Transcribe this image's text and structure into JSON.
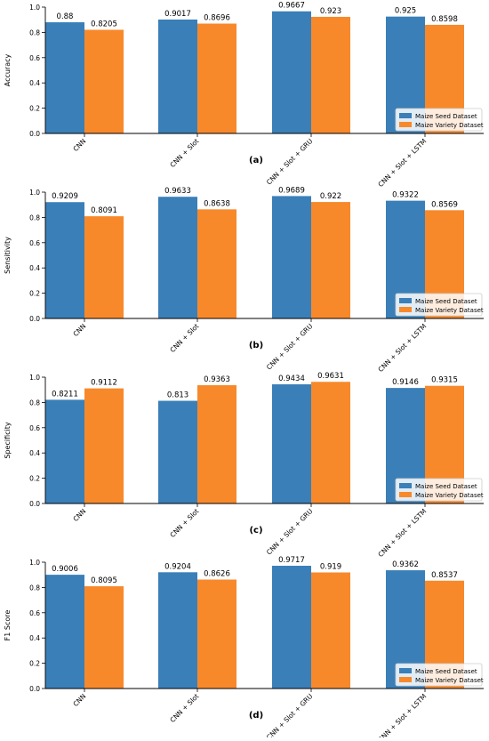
{
  "chart_data": [
    {
      "type": "bar",
      "panel_label": "(a)",
      "ylabel": "Accuracy",
      "ylim": [
        0,
        1.0
      ],
      "yticks": [
        "0.0",
        "0.2",
        "0.4",
        "0.6",
        "0.8",
        "1.0"
      ],
      "categories": [
        "CNN",
        "CNN + Slot",
        "CNN + Slot + GRU",
        "CNN + Slot + LSTM"
      ],
      "series": [
        {
          "name": "Maize Seed Dataset",
          "values": [
            0.88,
            0.9017,
            0.9667,
            0.925
          ],
          "labels": [
            "0.88",
            "0.9017",
            "0.9667",
            "0.925"
          ]
        },
        {
          "name": "Maize Variety Dataset",
          "values": [
            0.8205,
            0.8696,
            0.923,
            0.8598
          ],
          "labels": [
            "0.8205",
            "0.8696",
            "0.923",
            "0.8598"
          ]
        }
      ],
      "legend": "bottom-right",
      "grid": false
    },
    {
      "type": "bar",
      "panel_label": "(b)",
      "ylabel": "Sensitivity",
      "ylim": [
        0,
        1.0
      ],
      "yticks": [
        "0.0",
        "0.2",
        "0.4",
        "0.6",
        "0.8",
        "1.0"
      ],
      "categories": [
        "CNN",
        "CNN + Slot",
        "CNN + Slot + GRU",
        "CNN + Slot + LSTM"
      ],
      "series": [
        {
          "name": "Maize Seed Dataset",
          "values": [
            0.9209,
            0.9633,
            0.9689,
            0.9322
          ],
          "labels": [
            "0.9209",
            "0.9633",
            "0.9689",
            "0.9322"
          ]
        },
        {
          "name": "Maize Variety Dataset",
          "values": [
            0.8091,
            0.8638,
            0.922,
            0.8569
          ],
          "labels": [
            "0.8091",
            "0.8638",
            "0.922",
            "0.8569"
          ]
        }
      ],
      "legend": "bottom-right",
      "grid": false
    },
    {
      "type": "bar",
      "panel_label": "(c)",
      "ylabel": "Specificity",
      "ylim": [
        0,
        1.0
      ],
      "yticks": [
        "0.0",
        "0.2",
        "0.4",
        "0.6",
        "0.8",
        "1.0"
      ],
      "categories": [
        "CNN",
        "CNN + Slot",
        "CNN + Slot + GRU",
        "CNN + Slot + LSTM"
      ],
      "series": [
        {
          "name": "Maize Seed Dataset",
          "values": [
            0.8211,
            0.813,
            0.9434,
            0.9146
          ],
          "labels": [
            "0.8211",
            "0.813",
            "0.9434",
            "0.9146"
          ]
        },
        {
          "name": "Maize Variety Dataset",
          "values": [
            0.9112,
            0.9363,
            0.9631,
            0.9315
          ],
          "labels": [
            "0.9112",
            "0.9363",
            "0.9631",
            "0.9315"
          ]
        }
      ],
      "legend": "bottom-right",
      "grid": false
    },
    {
      "type": "bar",
      "panel_label": "(d)",
      "ylabel": "F1 Score",
      "ylim": [
        0,
        1.0
      ],
      "yticks": [
        "0.0",
        "0.2",
        "0.4",
        "0.6",
        "0.8",
        "1.0"
      ],
      "categories": [
        "CNN",
        "CNN + Slot",
        "CNN + Slot + GRU",
        "CNN + Slot + LSTM"
      ],
      "series": [
        {
          "name": "Maize Seed Dataset",
          "values": [
            0.9006,
            0.9204,
            0.9717,
            0.9362
          ],
          "labels": [
            "0.9006",
            "0.9204",
            "0.9717",
            "0.9362"
          ]
        },
        {
          "name": "Maize Variety Dataset",
          "values": [
            0.8095,
            0.8626,
            0.919,
            0.8537
          ],
          "labels": [
            "0.8095",
            "0.8626",
            "0.919",
            "0.8537"
          ]
        }
      ],
      "legend": "bottom-right",
      "grid": false
    }
  ],
  "colors": {
    "series": [
      "#3a7fb8",
      "#f7892b"
    ],
    "axis": "#000000",
    "legend_border": "#cccccc"
  }
}
